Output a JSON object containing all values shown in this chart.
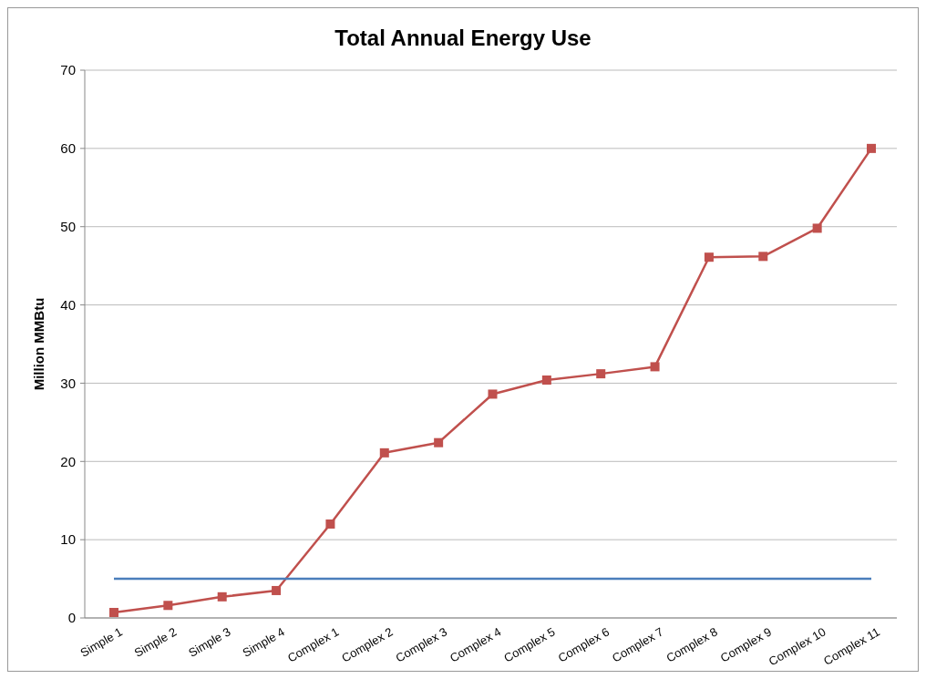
{
  "chart_data": {
    "type": "line",
    "title": "Total Annual Energy Use",
    "ylabel": "Million MMBtu",
    "categories": [
      "Simple 1",
      "Simple 2",
      "Simple 3",
      "Simple 4",
      "Complex 1",
      "Complex 2",
      "Complex 3",
      "Complex 4",
      "Complex 5",
      "Complex 6",
      "Complex 7",
      "Complex 8",
      "Complex 9",
      "Complex 10",
      "Complex 11"
    ],
    "series": [
      {
        "color": "#c0504d",
        "marker": "square",
        "values": [
          0.7,
          1.6,
          2.7,
          3.5,
          12.0,
          21.1,
          22.4,
          28.6,
          30.4,
          31.2,
          32.1,
          46.1,
          46.2,
          49.8,
          60.0
        ]
      },
      {
        "color": "#4a7ebb",
        "marker": "none",
        "values": [
          5,
          5,
          5,
          5,
          5,
          5,
          5,
          5,
          5,
          5,
          5,
          5,
          5,
          5,
          5
        ]
      }
    ],
    "ylim": [
      0,
      70
    ],
    "yticks": [
      0,
      10,
      20,
      30,
      40,
      50,
      60,
      70
    ],
    "grid": "y"
  }
}
